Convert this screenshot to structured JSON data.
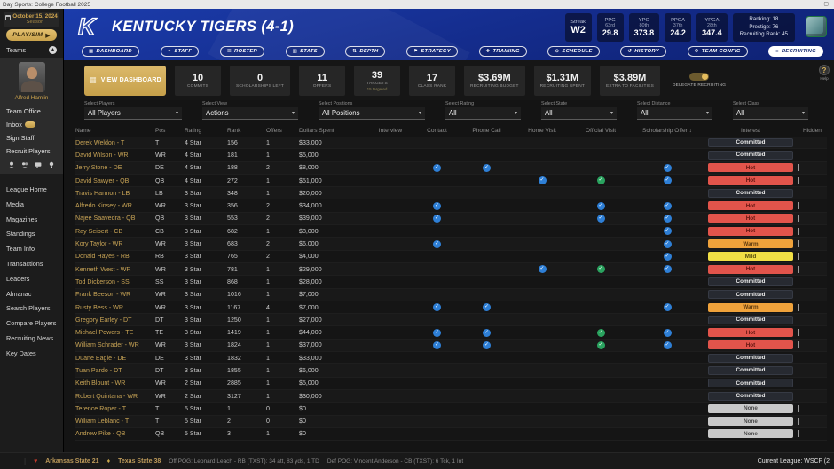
{
  "titlebar": {
    "title": "Day Sports: College Football 2025"
  },
  "sidebar": {
    "date": "October 15, 2024",
    "date_sub": "Season",
    "play_button": "PLAY/SIM",
    "teams_label": "Teams",
    "coach_name": "Alfred Hamlin",
    "menu": [
      "Team Office",
      "Inbox",
      "Sign Staff",
      "Recruit Players"
    ],
    "quick_icons": [
      "coach-icon",
      "staff-group-icon",
      "message-icon",
      "idea-icon"
    ],
    "nav": [
      "League Home",
      "Media",
      "Magazines",
      "Standings",
      "Team Info",
      "Transactions",
      "Leaders",
      "Almanac",
      "Search Players",
      "Compare Players",
      "Recruiting News",
      "Key Dates"
    ]
  },
  "header": {
    "team_title": "KENTUCKY TIGERS (4-1)",
    "streak": {
      "label": "Streak",
      "value": "W2"
    },
    "stats": [
      {
        "label": "PPG",
        "rank": "63rd",
        "value": "29.8"
      },
      {
        "label": "YPG",
        "rank": "80th",
        "value": "373.8"
      },
      {
        "label": "PPGA",
        "rank": "37th",
        "value": "24.2"
      },
      {
        "label": "YPGA",
        "rank": "28th",
        "value": "347.4"
      }
    ],
    "ranking_lines": [
      "Ranking: 18",
      "Prestige: 76",
      "Recruiting Rank: 45"
    ],
    "tabs": [
      {
        "label": "DASHBOARD",
        "icon": "dashboard-icon"
      },
      {
        "label": "STAFF",
        "icon": "staff-icon"
      },
      {
        "label": "ROSTER",
        "icon": "roster-icon"
      },
      {
        "label": "STATS",
        "icon": "stats-icon"
      },
      {
        "label": "DEPTH",
        "icon": "depth-icon"
      },
      {
        "label": "STRATEGY",
        "icon": "strategy-icon"
      },
      {
        "label": "TRAINING",
        "icon": "training-icon"
      },
      {
        "label": "SCHEDULE",
        "icon": "schedule-icon"
      },
      {
        "label": "HISTORY",
        "icon": "history-icon"
      },
      {
        "label": "TEAM CONFIG",
        "icon": "team-config-icon"
      },
      {
        "label": "RECRUITING",
        "icon": "recruiting-icon"
      }
    ],
    "active_tab": "RECRUITING"
  },
  "toolbar": {
    "view_dashboard_label": "VIEW DASHBOARD",
    "cards": [
      {
        "value": "10",
        "label": "COMMITS"
      },
      {
        "value": "0",
        "label": "SCHOLARSHIPS LEFT"
      },
      {
        "value": "11",
        "label": "OFFERS"
      },
      {
        "value": "39",
        "label": "TARGETS",
        "sub": "15 targeted"
      },
      {
        "value": "17",
        "label": "CLASS RANK"
      },
      {
        "value": "$3.69M",
        "label": "RECRUITING BUDGET"
      },
      {
        "value": "$1.31M",
        "label": "RECRUITING SPENT"
      },
      {
        "value": "$3.89M",
        "label": "EXTRA TO FACILITIES"
      }
    ],
    "delegate_label": "DELEGATE RECRUITING",
    "delegate_on": true,
    "help_label": "Help"
  },
  "filters": [
    {
      "label": "Select Players",
      "value": "All Players"
    },
    {
      "label": "Select View",
      "value": "Actions"
    },
    {
      "label": "Select Positions",
      "value": "All Positions"
    },
    {
      "label": "Select Rating",
      "value": "All"
    },
    {
      "label": "Select State",
      "value": "All"
    },
    {
      "label": "Select Distance",
      "value": "All"
    },
    {
      "label": "Select Class",
      "value": "All"
    }
  ],
  "table": {
    "headers": [
      "Name",
      "Pos",
      "Rating",
      "Rank",
      "Offers",
      "Dollars Spent",
      "Interview",
      "Contact",
      "Phone Call",
      "Home Visit",
      "Official Visit",
      "Scholarship Offer",
      "Interest",
      "Hidden"
    ],
    "sorted_by": "Scholarship Offer",
    "sort_direction": "desc",
    "rows": [
      {
        "name": "Derek Weldon - T",
        "pos": "T",
        "rating": "4 Star",
        "rank": "156",
        "offers": "1",
        "dollars": "$33,000",
        "checks": {},
        "interest": "Committed",
        "has_checkbox": false
      },
      {
        "name": "David Wilson - WR",
        "pos": "WR",
        "rating": "4 Star",
        "rank": "181",
        "offers": "1",
        "dollars": "$5,000",
        "checks": {},
        "interest": "Committed",
        "has_checkbox": false
      },
      {
        "name": "Jerry Stone - DE",
        "pos": "DE",
        "rating": "4 Star",
        "rank": "188",
        "offers": "2",
        "dollars": "$8,000",
        "checks": {
          "contact": "blue",
          "phone_call": "blue",
          "scholarship_offer": "blue"
        },
        "interest": "Hot",
        "has_checkbox": true
      },
      {
        "name": "David Sawyer - QB",
        "pos": "QB",
        "rating": "4 Star",
        "rank": "272",
        "offers": "1",
        "dollars": "$51,000",
        "checks": {
          "home_visit": "blue",
          "official_visit": "green",
          "scholarship_offer": "blue"
        },
        "interest": "Hot",
        "has_checkbox": true
      },
      {
        "name": "Travis Harmon - LB",
        "pos": "LB",
        "rating": "3 Star",
        "rank": "348",
        "offers": "1",
        "dollars": "$20,000",
        "checks": {},
        "interest": "Committed",
        "has_checkbox": false
      },
      {
        "name": "Alfredo Kinsey - WR",
        "pos": "WR",
        "rating": "3 Star",
        "rank": "356",
        "offers": "2",
        "dollars": "$34,000",
        "checks": {
          "contact": "blue",
          "official_visit": "blue",
          "scholarship_offer": "blue"
        },
        "interest": "Hot",
        "has_checkbox": true
      },
      {
        "name": "Najee Saavedra - QB",
        "pos": "QB",
        "rating": "3 Star",
        "rank": "553",
        "offers": "2",
        "dollars": "$39,000",
        "checks": {
          "contact": "blue",
          "official_visit": "blue",
          "scholarship_offer": "blue"
        },
        "interest": "Hot",
        "has_checkbox": true
      },
      {
        "name": "Ray Seibert - CB",
        "pos": "CB",
        "rating": "3 Star",
        "rank": "682",
        "offers": "1",
        "dollars": "$8,000",
        "checks": {
          "scholarship_offer": "blue"
        },
        "interest": "Hot",
        "has_checkbox": true
      },
      {
        "name": "Kory Taylor - WR",
        "pos": "WR",
        "rating": "3 Star",
        "rank": "683",
        "offers": "2",
        "dollars": "$6,000",
        "checks": {
          "contact": "blue",
          "scholarship_offer": "blue"
        },
        "interest": "Warm",
        "has_checkbox": true
      },
      {
        "name": "Donald Hayes - RB",
        "pos": "RB",
        "rating": "3 Star",
        "rank": "765",
        "offers": "2",
        "dollars": "$4,000",
        "checks": {
          "scholarship_offer": "blue"
        },
        "interest": "Mild",
        "has_checkbox": true
      },
      {
        "name": "Kenneth West - WR",
        "pos": "WR",
        "rating": "3 Star",
        "rank": "781",
        "offers": "1",
        "dollars": "$29,000",
        "checks": {
          "home_visit": "blue",
          "official_visit": "green",
          "scholarship_offer": "blue"
        },
        "interest": "Hot",
        "has_checkbox": true
      },
      {
        "name": "Tod Dickerson - SS",
        "pos": "SS",
        "rating": "3 Star",
        "rank": "868",
        "offers": "1",
        "dollars": "$28,000",
        "checks": {},
        "interest": "Committed",
        "has_checkbox": false
      },
      {
        "name": "Frank Beeson - WR",
        "pos": "WR",
        "rating": "3 Star",
        "rank": "1016",
        "offers": "1",
        "dollars": "$7,000",
        "checks": {},
        "interest": "Committed",
        "has_checkbox": false
      },
      {
        "name": "Rusty Bess - WR",
        "pos": "WR",
        "rating": "3 Star",
        "rank": "1167",
        "offers": "4",
        "dollars": "$7,000",
        "checks": {
          "contact": "blue",
          "phone_call": "blue",
          "scholarship_offer": "blue"
        },
        "interest": "Warm",
        "has_checkbox": true
      },
      {
        "name": "Gregory Earley - DT",
        "pos": "DT",
        "rating": "3 Star",
        "rank": "1250",
        "offers": "1",
        "dollars": "$27,000",
        "checks": {},
        "interest": "Committed",
        "has_checkbox": false
      },
      {
        "name": "Michael Powers - TE",
        "pos": "TE",
        "rating": "3 Star",
        "rank": "1419",
        "offers": "1",
        "dollars": "$44,000",
        "checks": {
          "contact": "blue",
          "phone_call": "blue",
          "official_visit": "green",
          "scholarship_offer": "blue"
        },
        "interest": "Hot",
        "has_checkbox": true
      },
      {
        "name": "William Schrader - WR",
        "pos": "WR",
        "rating": "3 Star",
        "rank": "1824",
        "offers": "1",
        "dollars": "$37,000",
        "checks": {
          "contact": "blue",
          "phone_call": "blue",
          "official_visit": "green",
          "scholarship_offer": "blue"
        },
        "interest": "Hot",
        "has_checkbox": true
      },
      {
        "name": "Duane Eagle - DE",
        "pos": "DE",
        "rating": "3 Star",
        "rank": "1832",
        "offers": "1",
        "dollars": "$33,000",
        "checks": {},
        "interest": "Committed",
        "has_checkbox": false
      },
      {
        "name": "Tuan Pardo - DT",
        "pos": "DT",
        "rating": "3 Star",
        "rank": "1855",
        "offers": "1",
        "dollars": "$6,000",
        "checks": {},
        "interest": "Committed",
        "has_checkbox": false
      },
      {
        "name": "Keith Blount - WR",
        "pos": "WR",
        "rating": "2 Star",
        "rank": "2885",
        "offers": "1",
        "dollars": "$5,000",
        "checks": {},
        "interest": "Committed",
        "has_checkbox": false
      },
      {
        "name": "Robert Quintana - WR",
        "pos": "WR",
        "rating": "2 Star",
        "rank": "3127",
        "offers": "1",
        "dollars": "$30,000",
        "checks": {},
        "interest": "Committed",
        "has_checkbox": false
      },
      {
        "name": "Terence Roper - T",
        "pos": "T",
        "rating": "5 Star",
        "rank": "1",
        "offers": "0",
        "dollars": "$0",
        "checks": {},
        "interest": "None",
        "has_checkbox": true
      },
      {
        "name": "William Leblanc - T",
        "pos": "T",
        "rating": "5 Star",
        "rank": "2",
        "offers": "0",
        "dollars": "$0",
        "checks": {},
        "interest": "None",
        "has_checkbox": true
      },
      {
        "name": "Andrew Pike - QB",
        "pos": "QB",
        "rating": "5 Star",
        "rank": "3",
        "offers": "1",
        "dollars": "$0",
        "checks": {},
        "interest": "None",
        "has_checkbox": true
      }
    ]
  },
  "statusbar": {
    "away_score": "Arkansas State 21",
    "home_score": "Texas State 38",
    "off_pog": "Off POG: Leonard Leach - RB (TXST): 34 att, 83 yds, 1 TD",
    "def_pog": "Def POG: Vincent Anderson - CB (TXST): 6 Tck, 1 Int",
    "league": "Current League: WSCF (2"
  },
  "colors": {
    "accent_gold": "#d2ab58",
    "kentucky_blue": "#16329e",
    "check_blue": "#2e7fd6",
    "check_green": "#2aa35f",
    "hot": "#e2544b",
    "warm": "#efa23b",
    "mild": "#f1df45",
    "none_badge": "#c9c9c9",
    "committed_bg": "#272a31"
  }
}
